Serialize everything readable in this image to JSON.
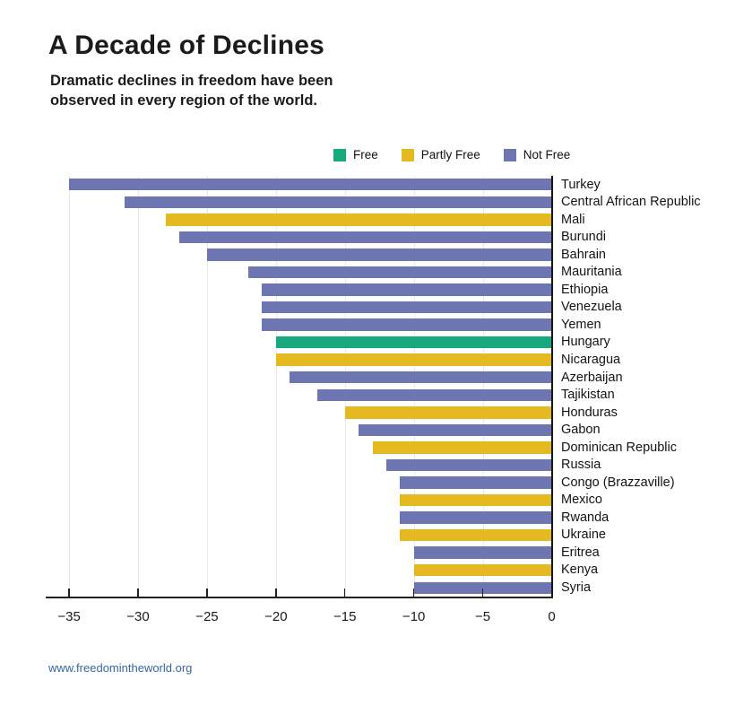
{
  "header": {
    "title": "A Decade of Declines",
    "subtitle_line1": "Dramatic declines in freedom have been",
    "subtitle_line2": "observed in every region of the world."
  },
  "legend": {
    "items": [
      {
        "label": "Free",
        "status": "free",
        "color": "#17a97d"
      },
      {
        "label": "Partly Free",
        "status": "partly_free",
        "color": "#e5ba21"
      },
      {
        "label": "Not Free",
        "status": "not_free",
        "color": "#6d76b0"
      }
    ]
  },
  "chart_data": {
    "type": "bar",
    "orientation": "horizontal",
    "title": "A Decade of Declines",
    "xlabel": "",
    "ylabel": "",
    "xlim": [
      -36.5,
      0
    ],
    "xticks": [
      -35,
      -30,
      -25,
      -20,
      -15,
      -10,
      -5,
      0
    ],
    "xtick_labels": [
      "−35",
      "−30",
      "−25",
      "−20",
      "−15",
      "−10",
      "−5",
      "0"
    ],
    "grid": true,
    "legend_position": "top-right",
    "categories": [
      "Turkey",
      "Central African Republic",
      "Mali",
      "Burundi",
      "Bahrain",
      "Mauritania",
      "Ethiopia",
      "Venezuela",
      "Yemen",
      "Hungary",
      "Nicaragua",
      "Azerbaijan",
      "Tajikistan",
      "Honduras",
      "Gabon",
      "Dominican Republic",
      "Russia",
      "Congo (Brazzaville)",
      "Mexico",
      "Rwanda",
      "Ukraine",
      "Eritrea",
      "Kenya",
      "Syria"
    ],
    "values": [
      -35,
      -31,
      -28,
      -27,
      -25,
      -22,
      -21,
      -21,
      -21,
      -20,
      -20,
      -19,
      -17,
      -15,
      -14,
      -13,
      -12,
      -11,
      -11,
      -11,
      -11,
      -10,
      -10,
      -10
    ],
    "statuses": [
      "not_free",
      "not_free",
      "partly_free",
      "not_free",
      "not_free",
      "not_free",
      "not_free",
      "not_free",
      "not_free",
      "free",
      "partly_free",
      "not_free",
      "not_free",
      "partly_free",
      "not_free",
      "partly_free",
      "not_free",
      "not_free",
      "partly_free",
      "not_free",
      "partly_free",
      "not_free",
      "partly_free",
      "not_free"
    ]
  },
  "colors": {
    "free": "#17a97d",
    "partly_free": "#e5ba21",
    "not_free": "#6d76b0",
    "axis": "#222222",
    "gridline": "#e9e9e9",
    "text": "#1b1b1b",
    "footer_link": "#34679d"
  },
  "footer": {
    "url_label": "www.freedomintheworld.org"
  }
}
